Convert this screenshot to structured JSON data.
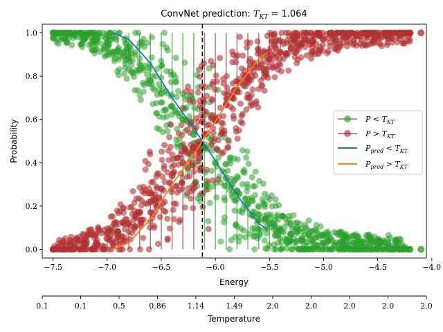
{
  "chart_data": {
    "type": "scatter",
    "title_prefix": "ConvNet prediction: ",
    "title_math": "T",
    "title_math_sub": "KT",
    "title_value": " = 1.064",
    "xlabel": "Energy",
    "ylabel": "Probability",
    "x_secondary_label": "Temperature",
    "xlim": [
      -7.6,
      -4.05
    ],
    "ylim": [
      -0.04,
      1.04
    ],
    "x_ticks": [
      -7.5,
      -7.0,
      -6.5,
      -6.0,
      -5.5,
      -5.0,
      -4.5,
      -4.0
    ],
    "x_tick_labels": [
      "−7.5",
      "−7.0",
      "−6.5",
      "−6.0",
      "−5.5",
      "−5.0",
      "−4.5",
      "−4.0"
    ],
    "y_ticks": [
      0.0,
      0.2,
      0.4,
      0.6,
      0.8,
      1.0
    ],
    "y_tick_labels": [
      "0.0",
      "0.2",
      "0.4",
      "0.6",
      "0.8",
      "1.0"
    ],
    "temperature_tick_labels": [
      "0.1",
      "0.1",
      "0.5",
      "0.86",
      "1.14",
      "1.49",
      "2.0",
      "2.0",
      "2.0",
      "2.0",
      "2.0"
    ],
    "critical_energy": -6.12,
    "legend_position": "center-right",
    "series": [
      {
        "name": "P < T",
        "legend_sub": "KT",
        "legend_math": "P < T",
        "kind": "scatter",
        "color": "#2ca02c",
        "x": [
          -7.5,
          -7.4,
          -7.3,
          -7.2,
          -7.1,
          -7.0,
          -6.9,
          -6.8,
          -6.7,
          -6.6,
          -6.5,
          -6.4,
          -6.3,
          -6.2,
          -6.1,
          -6.0,
          -5.9,
          -5.8,
          -5.7,
          -5.6,
          -5.5,
          -5.4,
          -5.3,
          -5.2,
          -5.1,
          -5.0,
          -4.9,
          -4.8,
          -4.7,
          -4.6,
          -4.5,
          -4.4,
          -4.3,
          -4.2,
          -4.1
        ],
        "y": [
          1.0,
          1.0,
          0.99,
          0.98,
          0.97,
          0.95,
          0.92,
          0.88,
          0.83,
          0.78,
          0.72,
          0.66,
          0.6,
          0.53,
          0.47,
          0.4,
          0.33,
          0.27,
          0.21,
          0.16,
          0.12,
          0.09,
          0.07,
          0.05,
          0.04,
          0.03,
          0.02,
          0.02,
          0.01,
          0.01,
          0.01,
          0.01,
          0.0,
          0.0,
          0.0
        ]
      },
      {
        "name": "P > T",
        "legend_sub": "KT",
        "legend_math": "P > T",
        "kind": "scatter",
        "color": "#b03232",
        "x": [
          -7.5,
          -7.4,
          -7.3,
          -7.2,
          -7.1,
          -7.0,
          -6.9,
          -6.8,
          -6.7,
          -6.6,
          -6.5,
          -6.4,
          -6.3,
          -6.2,
          -6.1,
          -6.0,
          -5.9,
          -5.8,
          -5.7,
          -5.6,
          -5.5,
          -5.4,
          -5.3,
          -5.2,
          -5.1,
          -5.0,
          -4.9,
          -4.8,
          -4.7,
          -4.6,
          -4.5,
          -4.4,
          -4.3,
          -4.2,
          -4.1
        ],
        "y": [
          0.0,
          0.0,
          0.01,
          0.02,
          0.03,
          0.05,
          0.08,
          0.12,
          0.17,
          0.22,
          0.28,
          0.34,
          0.4,
          0.47,
          0.53,
          0.6,
          0.67,
          0.73,
          0.79,
          0.84,
          0.88,
          0.91,
          0.93,
          0.95,
          0.96,
          0.97,
          0.98,
          0.98,
          0.99,
          0.99,
          0.99,
          0.99,
          1.0,
          1.0,
          1.0
        ]
      },
      {
        "name": "P_pred < T",
        "legend_math": "P",
        "legend_pre_sub": "pred",
        "legend_rest": " < T",
        "legend_sub": "KT",
        "kind": "line",
        "color": "#1f77b4",
        "x": [
          -6.95,
          -6.8,
          -6.6,
          -6.4,
          -6.2,
          -6.12,
          -6.0,
          -5.8,
          -5.6,
          -5.52
        ],
        "y": [
          1.0,
          0.97,
          0.86,
          0.7,
          0.56,
          0.5,
          0.41,
          0.25,
          0.12,
          0.09
        ]
      },
      {
        "name": "P_pred > T",
        "legend_math": "P",
        "legend_pre_sub": "pred",
        "legend_rest": " > T",
        "legend_sub": "KT",
        "kind": "line",
        "color": "#ff7f0e",
        "x": [
          -6.95,
          -6.8,
          -6.6,
          -6.4,
          -6.2,
          -6.12,
          -6.0,
          -5.8,
          -5.6,
          -5.52
        ],
        "y": [
          0.0,
          0.03,
          0.14,
          0.3,
          0.44,
          0.5,
          0.59,
          0.75,
          0.88,
          0.91
        ]
      }
    ]
  }
}
